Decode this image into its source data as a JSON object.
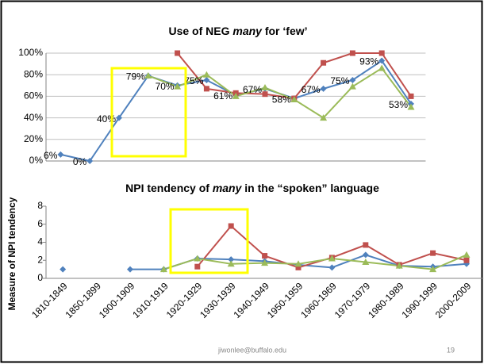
{
  "chart_data": [
    {
      "type": "line",
      "title": [
        "Use of NEG ",
        "many",
        " for ‘few’"
      ],
      "categories": [
        "1810-1849",
        "1850-1899",
        "1900-1909",
        "1910-1919",
        "1920-1929",
        "1930-1939",
        "1940-1949",
        "1950-1959",
        "1960-1969",
        "1970-1979",
        "1980-1989",
        "1990-1999",
        "2000-2009"
      ],
      "series": [
        {
          "color": "#4f81bd",
          "marker": "diamond",
          "values": [
            6,
            0,
            40,
            79,
            70,
            75,
            61,
            67,
            58,
            67,
            75,
            93,
            53
          ],
          "value_labels": [
            "6%",
            "0%",
            "40%",
            "79%",
            "70%",
            "75%",
            "61%",
            "67%",
            "58%",
            "67%",
            "75%",
            "93%",
            "53%"
          ]
        },
        {
          "color": "#c0504d",
          "marker": "square",
          "values": [
            null,
            null,
            null,
            null,
            100,
            67,
            63,
            62,
            58,
            91,
            100,
            100,
            60
          ]
        },
        {
          "color": "#9bbb59",
          "marker": "triangle",
          "values": [
            null,
            null,
            null,
            79,
            69,
            80,
            60,
            68,
            57,
            40,
            69,
            86,
            50
          ]
        }
      ],
      "ylim": [
        0,
        100
      ],
      "yticks": [
        {
          "value": 0,
          "label": "0%"
        },
        {
          "value": 20,
          "label": "20%"
        },
        {
          "value": 40,
          "label": "40%"
        },
        {
          "value": 60,
          "label": "60%"
        },
        {
          "value": 80,
          "label": "80%"
        },
        {
          "value": 100,
          "label": "100%"
        }
      ],
      "grid": true
    },
    {
      "type": "line",
      "title": [
        "NPI tendency of ",
        "many",
        " in the “spoken” language"
      ],
      "y_label": "Measure of NPI tendency",
      "categories": [
        "1810-1849",
        "1850-1899",
        "1900-1909",
        "1910-1919",
        "1920-1929",
        "1930-1939",
        "1940-1949",
        "1950-1959",
        "1960-1969",
        "1970-1979",
        "1980-1989",
        "1990-1999",
        "2000-2009"
      ],
      "series": [
        {
          "color": "#4f81bd",
          "marker": "diamond",
          "values": [
            1,
            null,
            1,
            1,
            2.2,
            2.1,
            1.9,
            1.5,
            1.2,
            2.6,
            1.4,
            1.3,
            1.6
          ]
        },
        {
          "color": "#c0504d",
          "marker": "square",
          "values": [
            null,
            null,
            null,
            null,
            1.3,
            5.8,
            2.5,
            1.2,
            2.3,
            3.7,
            1.5,
            2.8,
            2.0
          ]
        },
        {
          "color": "#9bbb59",
          "marker": "triangle",
          "values": [
            null,
            null,
            null,
            1,
            2.2,
            1.6,
            1.7,
            1.6,
            2.2,
            1.8,
            1.4,
            1.0,
            2.6
          ]
        }
      ],
      "ylim": [
        0,
        8
      ],
      "yticks": [
        0,
        2,
        4,
        6,
        8
      ],
      "grid": false
    }
  ],
  "footer": {
    "email": "jiwonlee@buffalo.edu",
    "page": "19"
  }
}
